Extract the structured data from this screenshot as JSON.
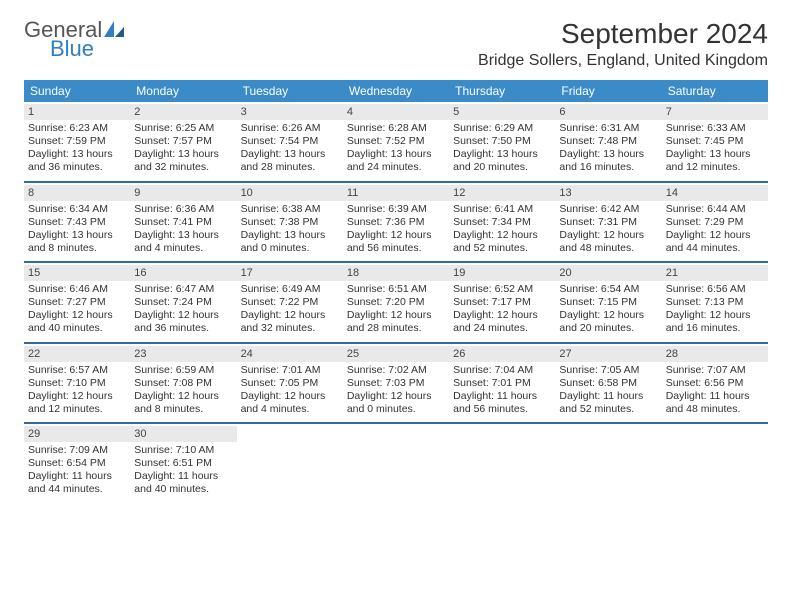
{
  "logo": {
    "general": "General",
    "blue": "Blue"
  },
  "title": "September 2024",
  "location": "Bridge Sollers, England, United Kingdom",
  "colors": {
    "header_bg": "#3b8bc9",
    "header_text": "#ffffff",
    "daynum_bg": "#e9e9e9",
    "week_border": "#2f6aa0",
    "logo_blue": "#2f7fc2",
    "text": "#333333",
    "background": "#ffffff"
  },
  "days_of_week": [
    "Sunday",
    "Monday",
    "Tuesday",
    "Wednesday",
    "Thursday",
    "Friday",
    "Saturday"
  ],
  "weeks": [
    [
      {
        "num": "1",
        "sunrise": "Sunrise: 6:23 AM",
        "sunset": "Sunset: 7:59 PM",
        "daylight1": "Daylight: 13 hours",
        "daylight2": "and 36 minutes."
      },
      {
        "num": "2",
        "sunrise": "Sunrise: 6:25 AM",
        "sunset": "Sunset: 7:57 PM",
        "daylight1": "Daylight: 13 hours",
        "daylight2": "and 32 minutes."
      },
      {
        "num": "3",
        "sunrise": "Sunrise: 6:26 AM",
        "sunset": "Sunset: 7:54 PM",
        "daylight1": "Daylight: 13 hours",
        "daylight2": "and 28 minutes."
      },
      {
        "num": "4",
        "sunrise": "Sunrise: 6:28 AM",
        "sunset": "Sunset: 7:52 PM",
        "daylight1": "Daylight: 13 hours",
        "daylight2": "and 24 minutes."
      },
      {
        "num": "5",
        "sunrise": "Sunrise: 6:29 AM",
        "sunset": "Sunset: 7:50 PM",
        "daylight1": "Daylight: 13 hours",
        "daylight2": "and 20 minutes."
      },
      {
        "num": "6",
        "sunrise": "Sunrise: 6:31 AM",
        "sunset": "Sunset: 7:48 PM",
        "daylight1": "Daylight: 13 hours",
        "daylight2": "and 16 minutes."
      },
      {
        "num": "7",
        "sunrise": "Sunrise: 6:33 AM",
        "sunset": "Sunset: 7:45 PM",
        "daylight1": "Daylight: 13 hours",
        "daylight2": "and 12 minutes."
      }
    ],
    [
      {
        "num": "8",
        "sunrise": "Sunrise: 6:34 AM",
        "sunset": "Sunset: 7:43 PM",
        "daylight1": "Daylight: 13 hours",
        "daylight2": "and 8 minutes."
      },
      {
        "num": "9",
        "sunrise": "Sunrise: 6:36 AM",
        "sunset": "Sunset: 7:41 PM",
        "daylight1": "Daylight: 13 hours",
        "daylight2": "and 4 minutes."
      },
      {
        "num": "10",
        "sunrise": "Sunrise: 6:38 AM",
        "sunset": "Sunset: 7:38 PM",
        "daylight1": "Daylight: 13 hours",
        "daylight2": "and 0 minutes."
      },
      {
        "num": "11",
        "sunrise": "Sunrise: 6:39 AM",
        "sunset": "Sunset: 7:36 PM",
        "daylight1": "Daylight: 12 hours",
        "daylight2": "and 56 minutes."
      },
      {
        "num": "12",
        "sunrise": "Sunrise: 6:41 AM",
        "sunset": "Sunset: 7:34 PM",
        "daylight1": "Daylight: 12 hours",
        "daylight2": "and 52 minutes."
      },
      {
        "num": "13",
        "sunrise": "Sunrise: 6:42 AM",
        "sunset": "Sunset: 7:31 PM",
        "daylight1": "Daylight: 12 hours",
        "daylight2": "and 48 minutes."
      },
      {
        "num": "14",
        "sunrise": "Sunrise: 6:44 AM",
        "sunset": "Sunset: 7:29 PM",
        "daylight1": "Daylight: 12 hours",
        "daylight2": "and 44 minutes."
      }
    ],
    [
      {
        "num": "15",
        "sunrise": "Sunrise: 6:46 AM",
        "sunset": "Sunset: 7:27 PM",
        "daylight1": "Daylight: 12 hours",
        "daylight2": "and 40 minutes."
      },
      {
        "num": "16",
        "sunrise": "Sunrise: 6:47 AM",
        "sunset": "Sunset: 7:24 PM",
        "daylight1": "Daylight: 12 hours",
        "daylight2": "and 36 minutes."
      },
      {
        "num": "17",
        "sunrise": "Sunrise: 6:49 AM",
        "sunset": "Sunset: 7:22 PM",
        "daylight1": "Daylight: 12 hours",
        "daylight2": "and 32 minutes."
      },
      {
        "num": "18",
        "sunrise": "Sunrise: 6:51 AM",
        "sunset": "Sunset: 7:20 PM",
        "daylight1": "Daylight: 12 hours",
        "daylight2": "and 28 minutes."
      },
      {
        "num": "19",
        "sunrise": "Sunrise: 6:52 AM",
        "sunset": "Sunset: 7:17 PM",
        "daylight1": "Daylight: 12 hours",
        "daylight2": "and 24 minutes."
      },
      {
        "num": "20",
        "sunrise": "Sunrise: 6:54 AM",
        "sunset": "Sunset: 7:15 PM",
        "daylight1": "Daylight: 12 hours",
        "daylight2": "and 20 minutes."
      },
      {
        "num": "21",
        "sunrise": "Sunrise: 6:56 AM",
        "sunset": "Sunset: 7:13 PM",
        "daylight1": "Daylight: 12 hours",
        "daylight2": "and 16 minutes."
      }
    ],
    [
      {
        "num": "22",
        "sunrise": "Sunrise: 6:57 AM",
        "sunset": "Sunset: 7:10 PM",
        "daylight1": "Daylight: 12 hours",
        "daylight2": "and 12 minutes."
      },
      {
        "num": "23",
        "sunrise": "Sunrise: 6:59 AM",
        "sunset": "Sunset: 7:08 PM",
        "daylight1": "Daylight: 12 hours",
        "daylight2": "and 8 minutes."
      },
      {
        "num": "24",
        "sunrise": "Sunrise: 7:01 AM",
        "sunset": "Sunset: 7:05 PM",
        "daylight1": "Daylight: 12 hours",
        "daylight2": "and 4 minutes."
      },
      {
        "num": "25",
        "sunrise": "Sunrise: 7:02 AM",
        "sunset": "Sunset: 7:03 PM",
        "daylight1": "Daylight: 12 hours",
        "daylight2": "and 0 minutes."
      },
      {
        "num": "26",
        "sunrise": "Sunrise: 7:04 AM",
        "sunset": "Sunset: 7:01 PM",
        "daylight1": "Daylight: 11 hours",
        "daylight2": "and 56 minutes."
      },
      {
        "num": "27",
        "sunrise": "Sunrise: 7:05 AM",
        "sunset": "Sunset: 6:58 PM",
        "daylight1": "Daylight: 11 hours",
        "daylight2": "and 52 minutes."
      },
      {
        "num": "28",
        "sunrise": "Sunrise: 7:07 AM",
        "sunset": "Sunset: 6:56 PM",
        "daylight1": "Daylight: 11 hours",
        "daylight2": "and 48 minutes."
      }
    ],
    [
      {
        "num": "29",
        "sunrise": "Sunrise: 7:09 AM",
        "sunset": "Sunset: 6:54 PM",
        "daylight1": "Daylight: 11 hours",
        "daylight2": "and 44 minutes."
      },
      {
        "num": "30",
        "sunrise": "Sunrise: 7:10 AM",
        "sunset": "Sunset: 6:51 PM",
        "daylight1": "Daylight: 11 hours",
        "daylight2": "and 40 minutes."
      },
      null,
      null,
      null,
      null,
      null
    ]
  ]
}
